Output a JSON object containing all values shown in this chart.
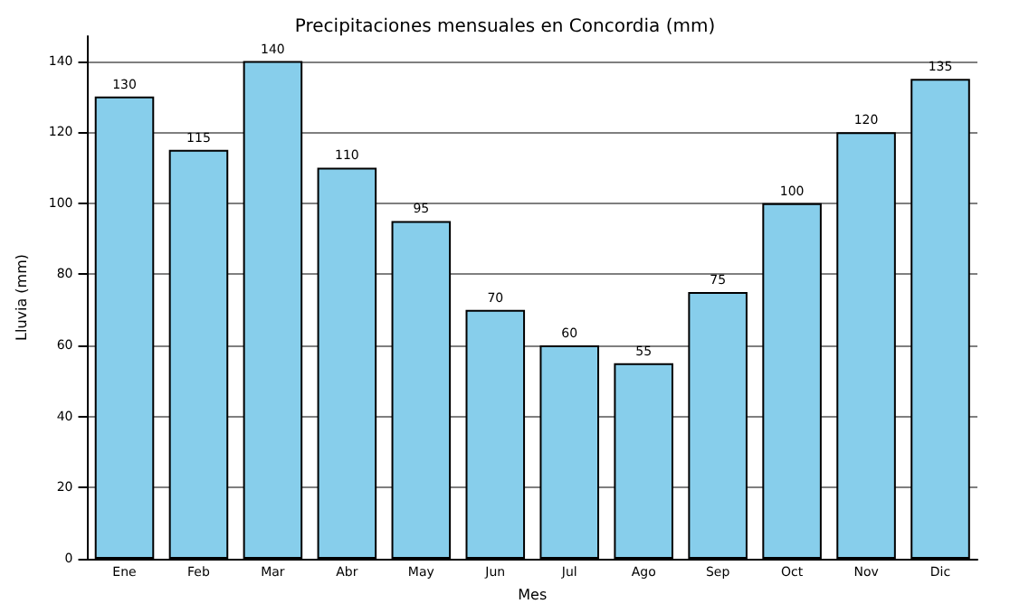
{
  "chart_data": {
    "type": "bar",
    "title": "Precipitaciones mensuales en Concordia (mm)",
    "xlabel": "Mes",
    "ylabel": "Lluvia (mm)",
    "categories": [
      "Ene",
      "Feb",
      "Mar",
      "Abr",
      "May",
      "Jun",
      "Jul",
      "Ago",
      "Sep",
      "Oct",
      "Nov",
      "Dic"
    ],
    "values": [
      130,
      115,
      140,
      110,
      95,
      70,
      60,
      55,
      75,
      100,
      120,
      135
    ],
    "color": "#87ceeb",
    "ylim": [
      0,
      147
    ],
    "yticks": [
      0,
      20,
      40,
      60,
      80,
      100,
      120,
      140
    ],
    "grid": "y",
    "data_labels": true
  }
}
